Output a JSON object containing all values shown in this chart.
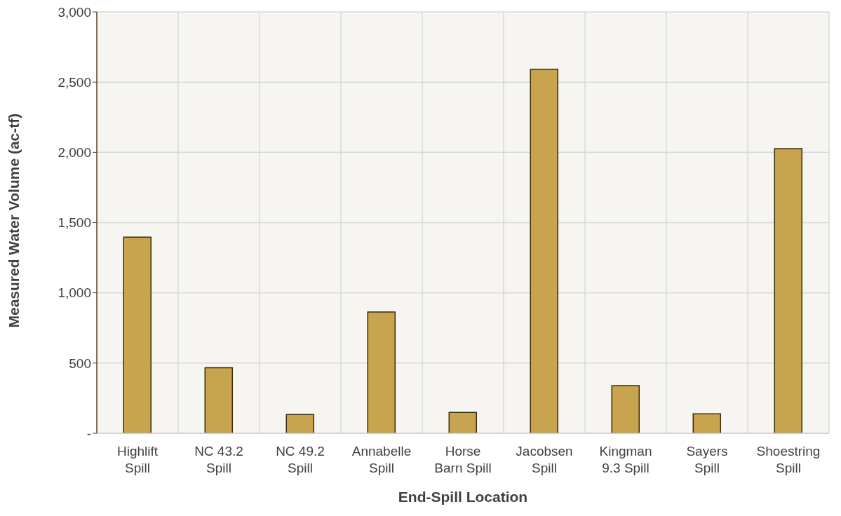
{
  "chart_data": {
    "type": "bar",
    "xlabel": "End-Spill Location",
    "ylabel": "Measured Water Volume (ac-tf)",
    "categories": [
      "Highlift Spill",
      "NC 43.2 Spill",
      "NC 49.2 Spill",
      "Annabelle Spill",
      "Horse Barn Spill",
      "Jacobsen Spill",
      "Kingman 9.3 Spill",
      "Sayers Spill",
      "Shoestring Spill"
    ],
    "values": [
      1397,
      467,
      133,
      864,
      148,
      2592,
      339,
      139,
      2027
    ],
    "color": "#c8a44e",
    "ylim": [
      0,
      3000
    ],
    "yticks": [
      {
        "value": 0,
        "label": "-"
      },
      {
        "value": 500,
        "label": "500"
      },
      {
        "value": 1000,
        "label": "1,000"
      },
      {
        "value": 1500,
        "label": "1,500"
      },
      {
        "value": 2000,
        "label": "2,000"
      },
      {
        "value": 2500,
        "label": "2,500"
      },
      {
        "value": 3000,
        "label": "3,000"
      }
    ],
    "grid": true
  }
}
